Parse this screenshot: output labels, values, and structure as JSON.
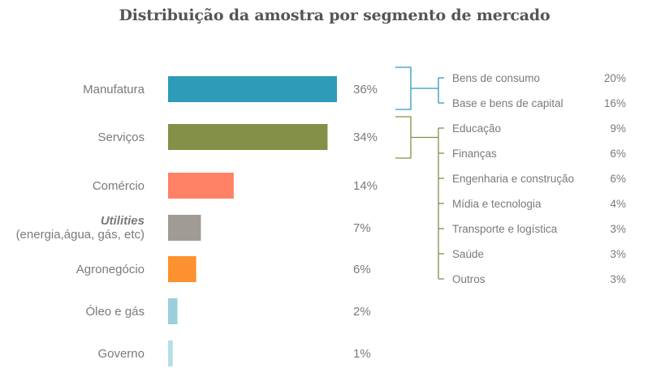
{
  "chart_data": {
    "type": "bar",
    "title": "Distribuição da amostra por segmento de mercado",
    "orientation": "horizontal",
    "categories": [
      {
        "label": "Manufatura",
        "sublabel": "",
        "italic": false
      },
      {
        "label": "Serviços",
        "sublabel": "",
        "italic": false
      },
      {
        "label": "Comércio",
        "sublabel": "",
        "italic": false
      },
      {
        "label": "Utilities",
        "sublabel": "(energia,água, gás, etc)",
        "italic": true
      },
      {
        "label": "Agronegócio",
        "sublabel": "",
        "italic": false
      },
      {
        "label": "Óleo e gás",
        "sublabel": "",
        "italic": false
      },
      {
        "label": "Governo",
        "sublabel": "",
        "italic": false
      }
    ],
    "values": [
      36,
      34,
      14,
      7,
      6,
      2,
      1
    ],
    "value_labels": [
      "36%",
      "34%",
      "14%",
      "7%",
      "6%",
      "2%",
      "1%"
    ],
    "colors": [
      "#2e9bb7",
      "#848f47",
      "#ff8266",
      "#a09c95",
      "#fd912f",
      "#9bcfdc",
      "#b6dee7"
    ],
    "breakdown": [
      {
        "parent": "Manufatura",
        "color": "#2e9bb7",
        "items": [
          {
            "label": "Bens de consumo",
            "value_label": "20%"
          },
          {
            "label": "Base e bens de capital",
            "value_label": "16%"
          }
        ]
      },
      {
        "parent": "Serviços",
        "color": "#848f47",
        "items": [
          {
            "label": "Educação",
            "value_label": "9%"
          },
          {
            "label": "Finanças",
            "value_label": "6%"
          },
          {
            "label": "Engenharia e construção",
            "value_label": "6%"
          },
          {
            "label": "Mídia e tecnologia",
            "value_label": "4%"
          },
          {
            "label": "Transporte e logística",
            "value_label": "3%"
          },
          {
            "label": "Saúde",
            "value_label": "3%"
          },
          {
            "label": "Outros",
            "value_label": "3%"
          }
        ]
      }
    ]
  }
}
